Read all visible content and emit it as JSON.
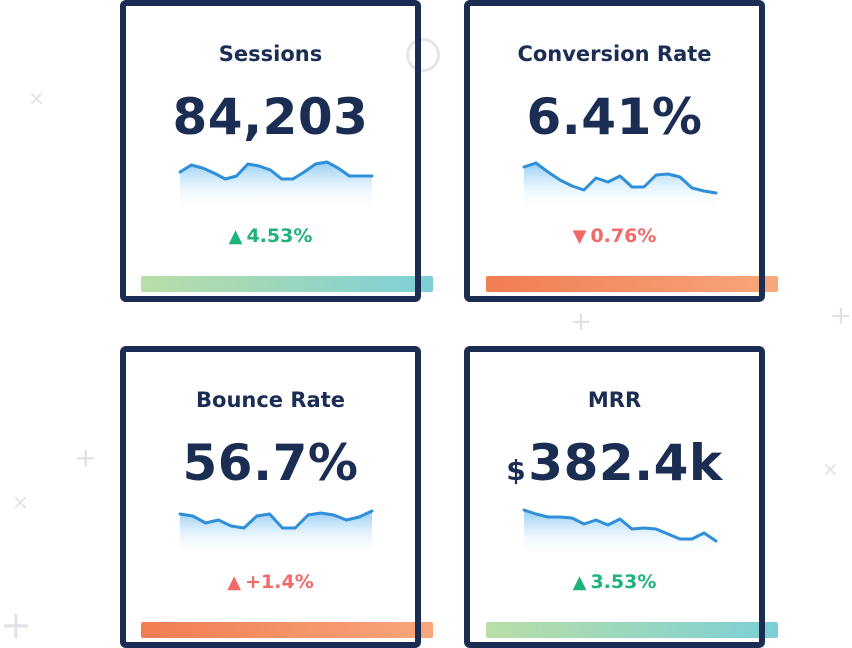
{
  "colors": {
    "navy": "#1b2d52",
    "positive": "#1fb27a",
    "negative": "#f06a6a",
    "spark_line": "#2f8fd8",
    "bar_green_start": "#b9dea6",
    "bar_green_end": "#7ccfd6",
    "bar_orange_start": "#f27d52",
    "bar_orange_end": "#f6a77b"
  },
  "cards": [
    {
      "title": "Sessions",
      "value": "84,203",
      "delta": {
        "direction": "up",
        "arrow": "▲",
        "text": "4.53%",
        "trend": "positive"
      },
      "bar_style": "green",
      "spark": [
        10,
        3,
        6,
        11,
        17,
        14,
        2,
        4,
        8,
        17,
        17,
        10,
        2,
        0,
        6,
        14,
        14,
        14
      ]
    },
    {
      "title": "Conversion Rate",
      "value": "6.41%",
      "delta": {
        "direction": "down",
        "arrow": "▼",
        "text": "0.76%",
        "trend": "negative"
      },
      "bar_style": "orange",
      "spark": [
        5,
        1,
        10,
        18,
        24,
        28,
        16,
        20,
        14,
        25,
        25,
        13,
        12,
        15,
        26,
        29,
        31
      ]
    },
    {
      "title": "Bounce Rate",
      "value": "56.7%",
      "delta": {
        "direction": "up",
        "arrow": "▲",
        "text": "+1.4%",
        "trend": "negative"
      },
      "bar_style": "orange",
      "spark": [
        6,
        8,
        15,
        12,
        18,
        20,
        8,
        6,
        20,
        20,
        7,
        5,
        7,
        12,
        9,
        3
      ]
    },
    {
      "title": "MRR",
      "currency": "$",
      "value": "382.4k",
      "delta": {
        "direction": "up",
        "arrow": "▲",
        "text": "3.53%",
        "trend": "positive"
      },
      "bar_style": "green",
      "spark": [
        2,
        6,
        9,
        9,
        10,
        16,
        12,
        17,
        11,
        21,
        20,
        21,
        26,
        31,
        31,
        25,
        33
      ]
    }
  ]
}
